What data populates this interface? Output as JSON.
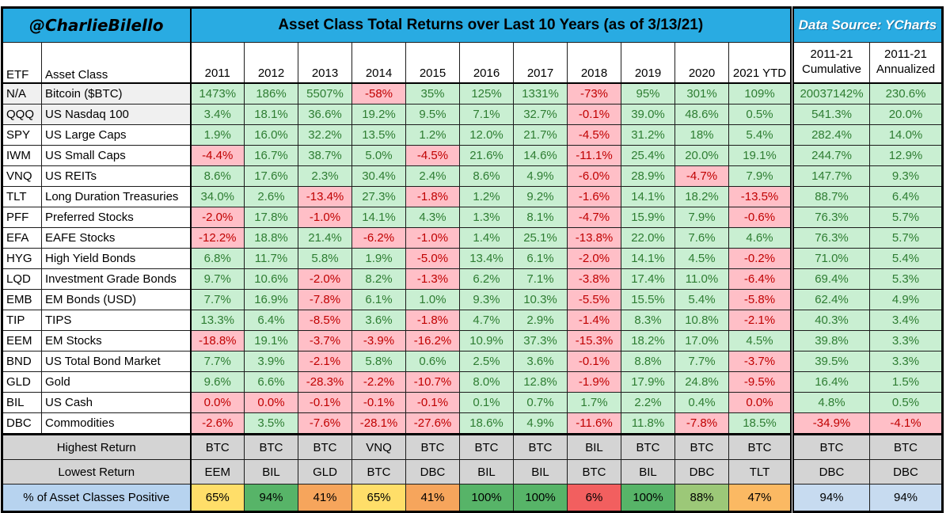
{
  "header": {
    "handle": "@CharlieBilello",
    "title": "Asset Class Total Returns over Last 10 Years (as of 3/13/21)",
    "data_source": "Data Source: YCharts"
  },
  "columns": {
    "etf": "ETF",
    "asset_class": "Asset Class",
    "years": [
      "2011",
      "2012",
      "2013",
      "2014",
      "2015",
      "2016",
      "2017",
      "2018",
      "2019",
      "2020",
      "2021 YTD"
    ],
    "range_label": "2011-21",
    "cumulative_label": "Cumulative",
    "annualized_label": "Annualized"
  },
  "rows": [
    {
      "etf": "N/A",
      "name": "Bitcoin ($BTC)",
      "shaded": true,
      "values": [
        "1473%",
        "186%",
        "5507%",
        "-58%",
        "35%",
        "125%",
        "1331%",
        "-73%",
        "95%",
        "301%",
        "109%"
      ],
      "cumulative": "20037142%",
      "annualized": "230.6%"
    },
    {
      "etf": "QQQ",
      "name": "US Nasdaq 100",
      "shaded": true,
      "values": [
        "3.4%",
        "18.1%",
        "36.6%",
        "19.2%",
        "9.5%",
        "7.1%",
        "32.7%",
        "-0.1%",
        "39.0%",
        "48.6%",
        "0.5%"
      ],
      "cumulative": "541.3%",
      "annualized": "20.0%"
    },
    {
      "etf": "SPY",
      "name": "US Large Caps",
      "shaded": false,
      "values": [
        "1.9%",
        "16.0%",
        "32.2%",
        "13.5%",
        "1.2%",
        "12.0%",
        "21.7%",
        "-4.5%",
        "31.2%",
        "18%",
        "5.4%"
      ],
      "cumulative": "282.4%",
      "annualized": "14.0%"
    },
    {
      "etf": "IWM",
      "name": "US Small Caps",
      "shaded": false,
      "values": [
        "-4.4%",
        "16.7%",
        "38.7%",
        "5.0%",
        "-4.5%",
        "21.6%",
        "14.6%",
        "-11.1%",
        "25.4%",
        "20.0%",
        "19.1%"
      ],
      "cumulative": "244.7%",
      "annualized": "12.9%"
    },
    {
      "etf": "VNQ",
      "name": "US REITs",
      "shaded": false,
      "values": [
        "8.6%",
        "17.6%",
        "2.3%",
        "30.4%",
        "2.4%",
        "8.6%",
        "4.9%",
        "-6.0%",
        "28.9%",
        "-4.7%",
        "7.9%"
      ],
      "cumulative": "147.7%",
      "annualized": "9.3%"
    },
    {
      "etf": "TLT",
      "name": "Long Duration Treasuries",
      "shaded": false,
      "values": [
        "34.0%",
        "2.6%",
        "-13.4%",
        "27.3%",
        "-1.8%",
        "1.2%",
        "9.2%",
        "-1.6%",
        "14.1%",
        "18.2%",
        "-13.5%"
      ],
      "cumulative": "88.7%",
      "annualized": "6.4%"
    },
    {
      "etf": "PFF",
      "name": "Preferred Stocks",
      "shaded": false,
      "values": [
        "-2.0%",
        "17.8%",
        "-1.0%",
        "14.1%",
        "4.3%",
        "1.3%",
        "8.1%",
        "-4.7%",
        "15.9%",
        "7.9%",
        "-0.6%"
      ],
      "cumulative": "76.3%",
      "annualized": "5.7%"
    },
    {
      "etf": "EFA",
      "name": "EAFE Stocks",
      "shaded": false,
      "values": [
        "-12.2%",
        "18.8%",
        "21.4%",
        "-6.2%",
        "-1.0%",
        "1.4%",
        "25.1%",
        "-13.8%",
        "22.0%",
        "7.6%",
        "4.6%"
      ],
      "cumulative": "76.3%",
      "annualized": "5.7%"
    },
    {
      "etf": "HYG",
      "name": "High Yield Bonds",
      "shaded": false,
      "values": [
        "6.8%",
        "11.7%",
        "5.8%",
        "1.9%",
        "-5.0%",
        "13.4%",
        "6.1%",
        "-2.0%",
        "14.1%",
        "4.5%",
        "-0.2%"
      ],
      "cumulative": "71.0%",
      "annualized": "5.4%"
    },
    {
      "etf": "LQD",
      "name": "Investment Grade Bonds",
      "shaded": false,
      "values": [
        "9.7%",
        "10.6%",
        "-2.0%",
        "8.2%",
        "-1.3%",
        "6.2%",
        "7.1%",
        "-3.8%",
        "17.4%",
        "11.0%",
        "-6.4%"
      ],
      "cumulative": "69.4%",
      "annualized": "5.3%"
    },
    {
      "etf": "EMB",
      "name": "EM Bonds (USD)",
      "shaded": false,
      "values": [
        "7.7%",
        "16.9%",
        "-7.8%",
        "6.1%",
        "1.0%",
        "9.3%",
        "10.3%",
        "-5.5%",
        "15.5%",
        "5.4%",
        "-5.8%"
      ],
      "cumulative": "62.4%",
      "annualized": "4.9%"
    },
    {
      "etf": "TIP",
      "name": "TIPS",
      "shaded": false,
      "values": [
        "13.3%",
        "6.4%",
        "-8.5%",
        "3.6%",
        "-1.8%",
        "4.7%",
        "2.9%",
        "-1.4%",
        "8.3%",
        "10.8%",
        "-2.1%"
      ],
      "cumulative": "40.3%",
      "annualized": "3.4%"
    },
    {
      "etf": "EEM",
      "name": "EM Stocks",
      "shaded": false,
      "values": [
        "-18.8%",
        "19.1%",
        "-3.7%",
        "-3.9%",
        "-16.2%",
        "10.9%",
        "37.3%",
        "-15.3%",
        "18.2%",
        "17.0%",
        "4.5%"
      ],
      "cumulative": "39.8%",
      "annualized": "3.3%"
    },
    {
      "etf": "BND",
      "name": "US Total Bond Market",
      "shaded": false,
      "values": [
        "7.7%",
        "3.9%",
        "-2.1%",
        "5.8%",
        "0.6%",
        "2.5%",
        "3.6%",
        "-0.1%",
        "8.8%",
        "7.7%",
        "-3.7%"
      ],
      "cumulative": "39.5%",
      "annualized": "3.3%"
    },
    {
      "etf": "GLD",
      "name": "Gold",
      "shaded": false,
      "values": [
        "9.6%",
        "6.6%",
        "-28.3%",
        "-2.2%",
        "-10.7%",
        "8.0%",
        "12.8%",
        "-1.9%",
        "17.9%",
        "24.8%",
        "-9.5%"
      ],
      "cumulative": "16.4%",
      "annualized": "1.5%"
    },
    {
      "etf": "BIL",
      "name": "US Cash",
      "shaded": false,
      "values": [
        "0.0%",
        "0.0%",
        "-0.1%",
        "-0.1%",
        "-0.1%",
        "0.1%",
        "0.7%",
        "1.7%",
        "2.2%",
        "0.4%",
        "0.0%"
      ],
      "cumulative": "4.8%",
      "annualized": "0.5%"
    },
    {
      "etf": "DBC",
      "name": "Commodities",
      "shaded": false,
      "values": [
        "-2.6%",
        "3.5%",
        "-7.6%",
        "-28.1%",
        "-27.6%",
        "18.6%",
        "4.9%",
        "-11.6%",
        "11.8%",
        "-7.8%",
        "18.5%"
      ],
      "cumulative": "-34.9%",
      "annualized": "-4.1%"
    }
  ],
  "summary": {
    "highest": {
      "label": "Highest Return",
      "values": [
        "BTC",
        "BTC",
        "BTC",
        "VNQ",
        "BTC",
        "BTC",
        "BTC",
        "BIL",
        "BTC",
        "BTC",
        "BTC"
      ],
      "cumulative": "BTC",
      "annualized": "BTC"
    },
    "lowest": {
      "label": "Lowest Return",
      "values": [
        "EEM",
        "BIL",
        "GLD",
        "BTC",
        "DBC",
        "BIL",
        "BIL",
        "BTC",
        "BIL",
        "DBC",
        "TLT"
      ],
      "cumulative": "DBC",
      "annualized": "DBC"
    },
    "pct_positive": {
      "label": "% of Asset Classes Positive",
      "values": [
        "65%",
        "94%",
        "41%",
        "65%",
        "41%",
        "100%",
        "100%",
        "6%",
        "100%",
        "88%",
        "47%"
      ],
      "cell_colors": [
        "#FFDE69",
        "#57B468",
        "#F6A55C",
        "#FFDE69",
        "#F6A55C",
        "#57B468",
        "#57B468",
        "#F25F5F",
        "#57B468",
        "#9CC878",
        "#FBB963"
      ],
      "cumulative": "94%",
      "annualized": "94%"
    }
  },
  "colors": {
    "header_bg": "#29ABE2",
    "positive_bg": "#C9EFD2",
    "positive_text": "#2E7D32",
    "negative_bg": "#FFBFC7",
    "negative_text": "#C00000",
    "gray_header_bg": "#BFBFBF",
    "summary_gray_bg": "#D4D4D4",
    "pct_label_bg": "#B7D3EF",
    "pct_blue_bg": "#C7DBF0"
  }
}
